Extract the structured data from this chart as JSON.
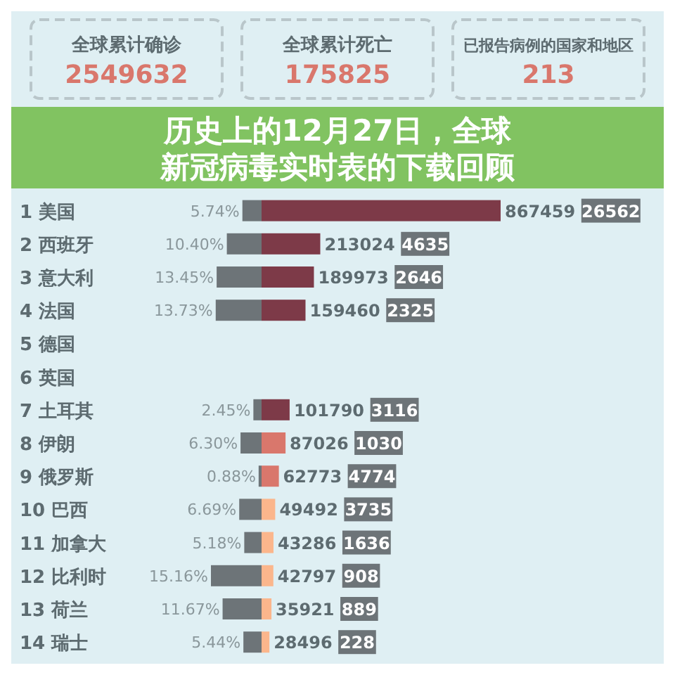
{
  "chart_data": [
    {
      "type": "other",
      "title": "历史上的12月27日，全球新冠病毒实时表的下载回顾",
      "annotations": [
        "全球累计确诊",
        "2549632",
        "全球累计死亡",
        "175825",
        "已报告病例的国家和地区",
        "213"
      ]
    },
    {
      "type": "bar",
      "orientation": "horizontal",
      "tick_labels": "y",
      "color": "#6d7478",
      "categories": [
        "1 美国",
        "2 西班牙",
        "3 意大利",
        "4 法国",
        "5 德国",
        "6 英国",
        "7 土耳其",
        "8 伊朗",
        "9 俄罗斯",
        "10 巴西",
        "11 加拿大",
        "12 比利时",
        "13 荷兰",
        "14 瑞士"
      ],
      "values": [
        5.74,
        10.4,
        13.45,
        13.73,
        null,
        null,
        2.45,
        6.3,
        0.88,
        6.69,
        5.18,
        15.16,
        11.67,
        5.44
      ],
      "value_labels": [
        "5.74%",
        "10.40%",
        "13.45%",
        "13.73%",
        null,
        null,
        "2.45%",
        "6.30%",
        "0.88%",
        "6.69%",
        "5.18%",
        "15.16%",
        "11.67%",
        "5.44%"
      ]
    },
    {
      "type": "bar",
      "orientation": "horizontal",
      "tick_labels": false,
      "data_labels": true,
      "categories": [
        "1 美国",
        "2 西班牙",
        "3 意大利",
        "4 法国",
        "5 德国",
        "6 英国",
        "7 土耳其",
        "8 伊朗",
        "9 俄罗斯",
        "10 巴西",
        "11 加拿大",
        "12 比利时",
        "13 荷兰",
        "14 瑞士"
      ],
      "values": [
        867459,
        213024,
        189973,
        159460,
        null,
        null,
        101790,
        87026,
        62773,
        49492,
        43286,
        42797,
        35921,
        28496
      ],
      "colors": [
        "#7d3a48",
        "#7d3a48",
        "#7d3a48",
        "#7d3a48",
        null,
        null,
        "#7d3a48",
        "#d9776c",
        "#d9776c",
        "#fbb68c",
        "#fbb68c",
        "#fbb68c",
        "#fbb68c",
        "#fbb68c"
      ],
      "annotations": [
        "26562",
        "4635",
        "2646",
        "2325",
        "3116",
        "1030",
        "4774",
        "3735",
        "1636",
        "908",
        "889",
        "228"
      ]
    }
  ]
}
